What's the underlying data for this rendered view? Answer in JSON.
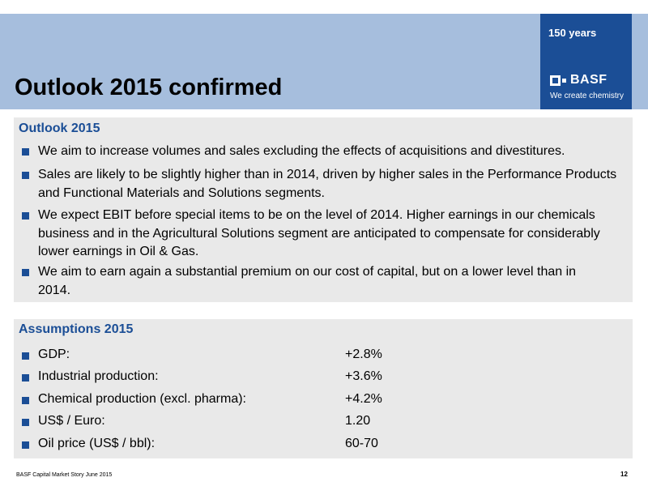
{
  "header": {
    "title": "Outlook 2015 confirmed",
    "anniversary": "150 years",
    "logo_name": "BASF",
    "logo_tagline": "We create chemistry"
  },
  "outlook": {
    "heading": "Outlook 2015",
    "bullets": [
      "We aim to increase volumes and sales excluding the effects of acquisitions and divestitures.",
      "Sales are likely to be slightly higher than in 2014, driven by higher sales in the Performance Products and Functional Materials and Solutions segments.",
      "We expect EBIT before special items to be on the level of 2014. Higher earnings in our chemicals business and in the Agricultural Solutions segment are anticipated to compensate for considerably lower earnings in Oil & Gas.",
      "We aim to earn again a substantial premium on our cost of capital, but on a lower level than in 2014."
    ]
  },
  "assumptions": {
    "heading": "Assumptions 2015",
    "rows": [
      {
        "label": "GDP:",
        "value": "+2.8%"
      },
      {
        "label": "Industrial production:",
        "value": "+3.6%"
      },
      {
        "label": "Chemical production (excl. pharma):",
        "value": "+4.2%"
      },
      {
        "label": "US$ / Euro:",
        "value": "1.20"
      },
      {
        "label": "Oil price (US$ / bbl):",
        "value": "60-70"
      }
    ]
  },
  "footer": {
    "source": "BASF Capital Market Story June 2015",
    "page": "12"
  },
  "colors": {
    "brand_blue": "#1b4e96",
    "header_band": "#a6bedd",
    "panel_bg": "#e9e9e9"
  }
}
